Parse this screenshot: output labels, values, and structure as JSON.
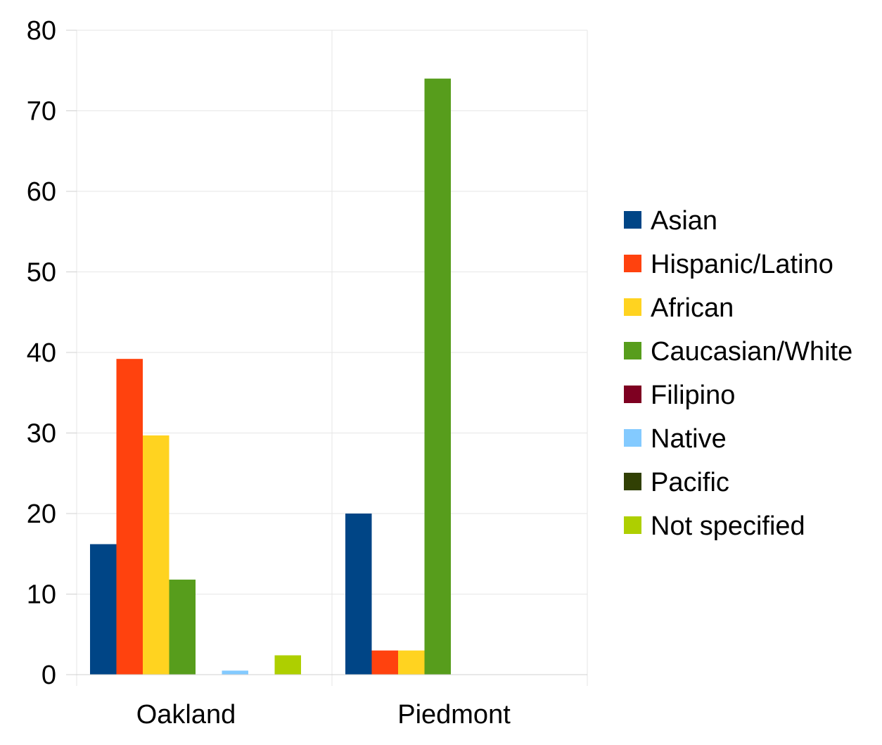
{
  "chart_data": {
    "type": "bar",
    "title": "",
    "xlabel": "",
    "ylabel": "",
    "categories": [
      "Oakland",
      "Piedmont"
    ],
    "ylim": [
      0,
      80
    ],
    "yticks": [
      0,
      10,
      20,
      30,
      40,
      50,
      60,
      70,
      80
    ],
    "grid": true,
    "legend_position": "right",
    "series": [
      {
        "name": "Asian",
        "color": "#004586",
        "values": [
          16.2,
          20.0
        ]
      },
      {
        "name": "Hispanic/Latino",
        "color": "#FF420E",
        "values": [
          39.2,
          3.0
        ]
      },
      {
        "name": "African",
        "color": "#FFD320",
        "values": [
          29.7,
          3.0
        ]
      },
      {
        "name": "Caucasian/White",
        "color": "#579D1C",
        "values": [
          11.8,
          74.0
        ]
      },
      {
        "name": "Filipino",
        "color": "#7E0021",
        "values": [
          0,
          0
        ]
      },
      {
        "name": "Native",
        "color": "#83CAFF",
        "values": [
          0.5,
          0
        ]
      },
      {
        "name": "Pacific",
        "color": "#314004",
        "values": [
          0,
          0
        ]
      },
      {
        "name": "Not specified",
        "color": "#AECF00",
        "values": [
          2.4,
          0
        ]
      }
    ]
  }
}
